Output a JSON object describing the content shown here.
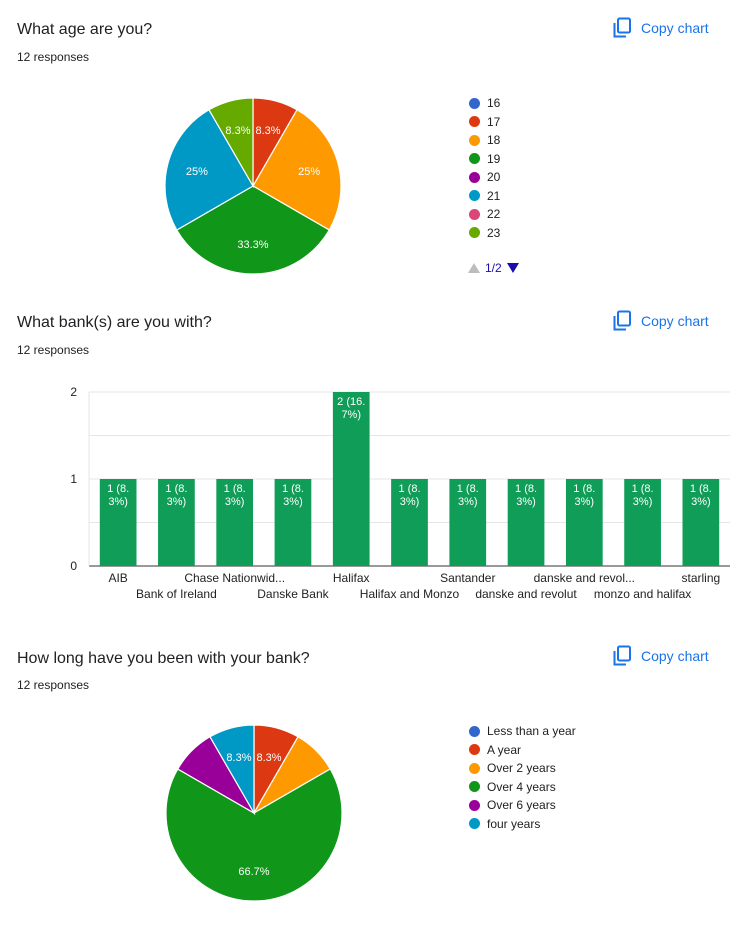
{
  "copy_label": "Copy chart",
  "chart_data": [
    {
      "type": "pie",
      "title": "What age are you?",
      "responses": "12 responses",
      "categories": [
        "16",
        "17",
        "18",
        "19",
        "20",
        "21",
        "22",
        "23"
      ],
      "values": [
        0,
        1,
        3,
        4,
        0,
        3,
        0,
        1
      ],
      "colors": [
        "#3366cc",
        "#dc3912",
        "#ff9900",
        "#109618",
        "#990099",
        "#0099c6",
        "#dd4477",
        "#66aa00"
      ],
      "slice_labels": [
        "",
        "8.3%",
        "25%",
        "33.3%",
        "",
        "25%",
        "",
        "8.3%"
      ],
      "pager": "1/2"
    },
    {
      "type": "bar",
      "title": "What bank(s) are you with?",
      "responses": "12 responses",
      "categories": [
        "AIB",
        "Bank of Ireland",
        "Chase Nationwid...",
        "Danske Bank",
        "Halifax",
        "Halifax and Monzo",
        "Santander",
        "danske and revolut",
        "danske and revol...",
        "monzo and halifax",
        "starling"
      ],
      "values": [
        1,
        1,
        1,
        1,
        2,
        1,
        1,
        1,
        1,
        1,
        1
      ],
      "bar_labels": [
        "1 (8.|3%)",
        "1 (8.|3%)",
        "1 (8.|3%)",
        "1 (8.|3%)",
        "2 (16.|7%)",
        "1 (8.|3%)",
        "1 (8.|3%)",
        "1 (8.|3%)",
        "1 (8.|3%)",
        "1 (8.|3%)",
        "1 (8.|3%)"
      ],
      "yticks": [
        "0",
        "1",
        "2"
      ],
      "ylim": [
        0,
        2
      ],
      "color": "#0f9d58"
    },
    {
      "type": "pie",
      "title": "How long have you been with your bank?",
      "responses": "12 responses",
      "categories": [
        "Less than a year",
        "A year",
        "Over 2 years",
        "Over 4 years",
        "Over 6 years",
        "four years"
      ],
      "values": [
        0,
        1,
        1,
        8,
        1,
        1
      ],
      "colors": [
        "#3366cc",
        "#dc3912",
        "#ff9900",
        "#109618",
        "#990099",
        "#0099c6"
      ],
      "slice_labels": [
        "",
        "8.3%",
        "",
        "66.7%",
        "",
        "8.3%"
      ]
    }
  ]
}
